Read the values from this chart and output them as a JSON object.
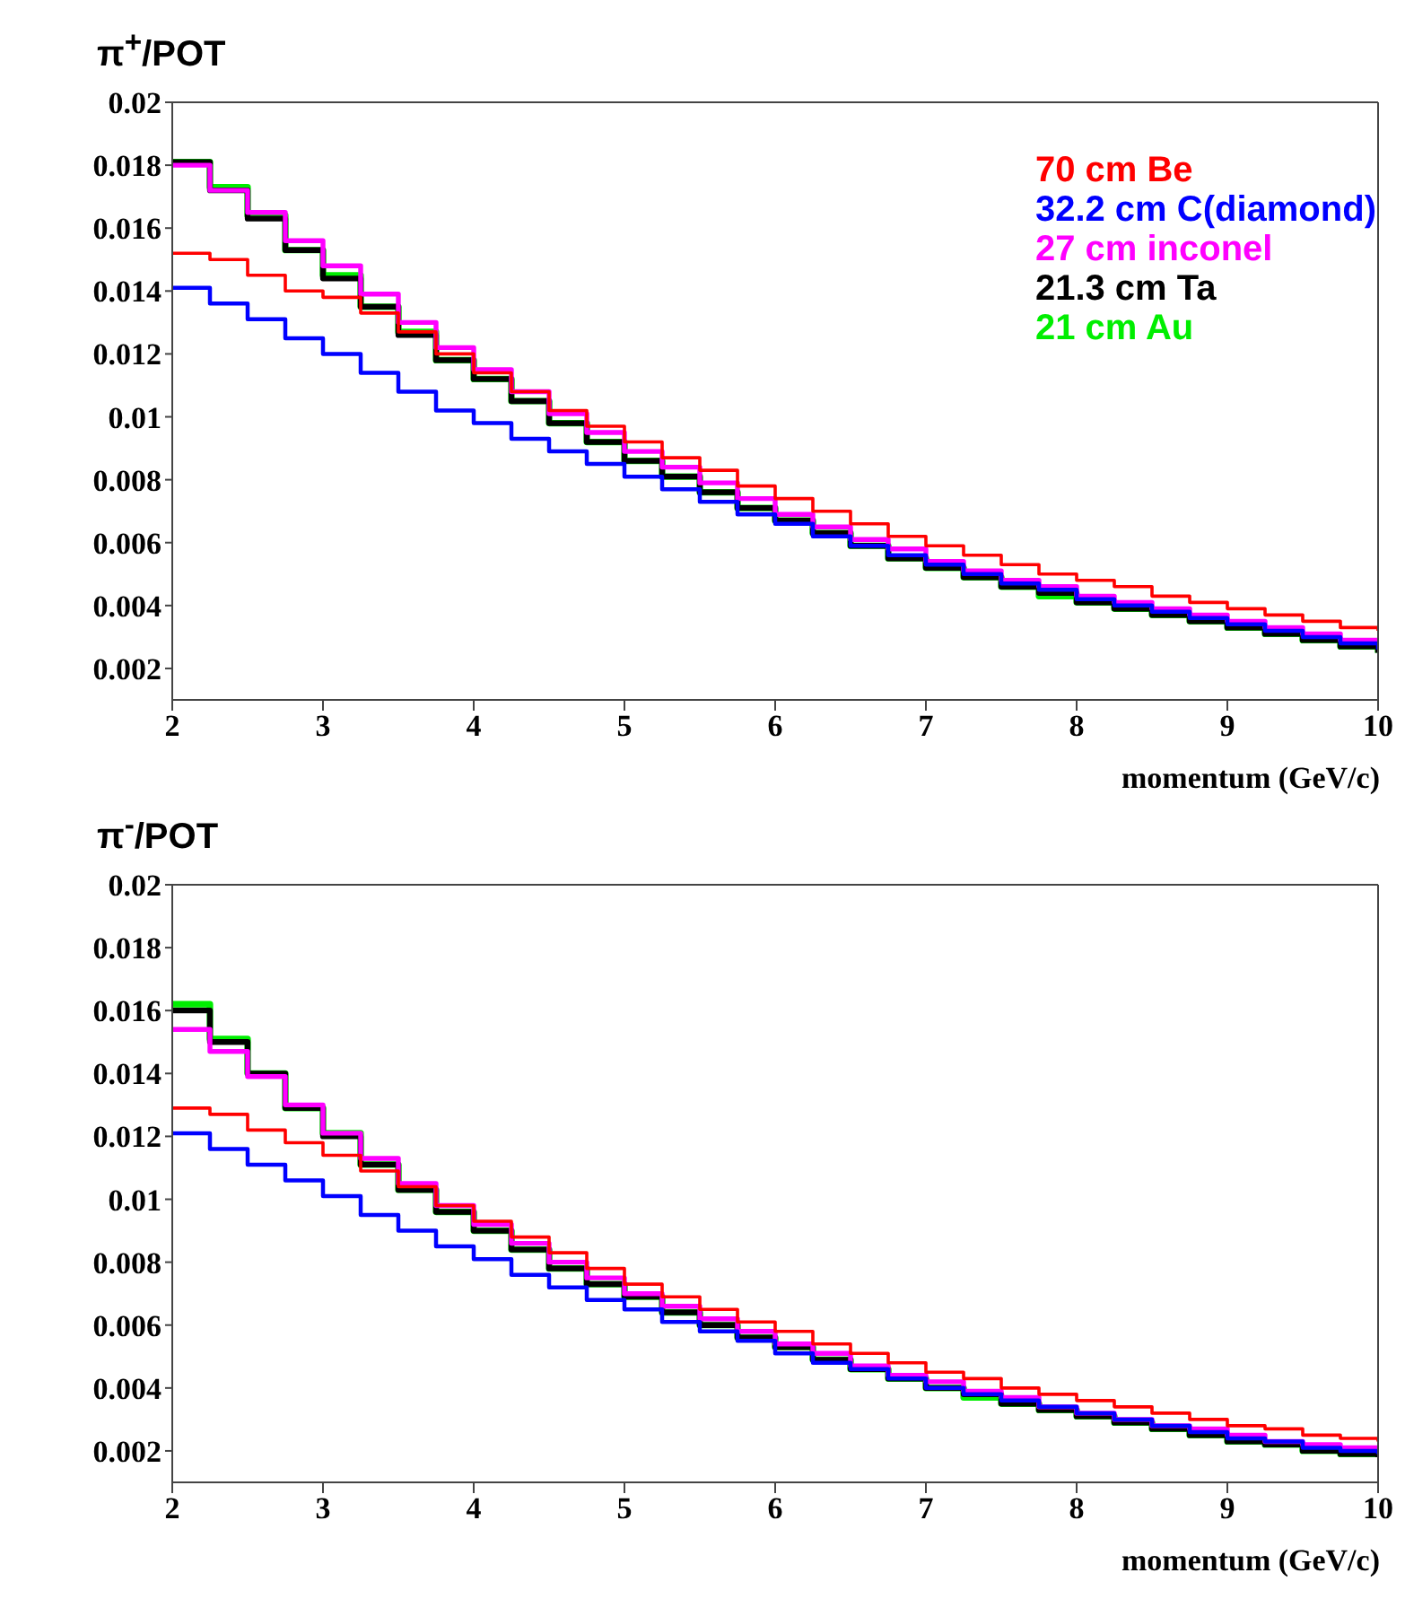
{
  "chart_data": [
    {
      "type": "step",
      "ylabel": "π$^{+}$/POT",
      "xlabel": "momentum (GeV/c)",
      "xlim": [
        2,
        10
      ],
      "xticks": [
        2,
        3,
        4,
        5,
        6,
        7,
        8,
        9,
        10
      ],
      "ylim": [
        0.001,
        0.02
      ],
      "yticks": [
        0.002,
        0.004,
        0.006,
        0.008,
        0.01,
        0.012,
        0.014,
        0.016,
        0.018,
        0.02
      ],
      "legend": "top right",
      "grid": false,
      "x": [
        2,
        2.25,
        2.5,
        2.75,
        3,
        3.25,
        3.5,
        3.75,
        4,
        4.25,
        4.5,
        4.75,
        5,
        5.25,
        5.5,
        5.75,
        6,
        6.25,
        6.5,
        6.75,
        7,
        7.25,
        7.5,
        7.75,
        8,
        8.25,
        8.5,
        8.75,
        9,
        9.25,
        9.5,
        9.75,
        10
      ],
      "series": [
        {
          "name": "70 cm Be",
          "color": "#ff0000",
          "values": [
            0.0152,
            0.015,
            0.0145,
            0.014,
            0.0138,
            0.0133,
            0.0127,
            0.012,
            0.0114,
            0.0108,
            0.0102,
            0.0097,
            0.0092,
            0.0087,
            0.0083,
            0.0078,
            0.0074,
            0.007,
            0.0066,
            0.0062,
            0.0059,
            0.0056,
            0.0053,
            0.005,
            0.0048,
            0.0046,
            0.0043,
            0.0041,
            0.0039,
            0.0037,
            0.0035,
            0.0033,
            0.0032
          ]
        },
        {
          "name": "32.2 cm C(diamond)",
          "color": "#0000ff",
          "values": [
            0.0141,
            0.0136,
            0.0131,
            0.0125,
            0.012,
            0.0114,
            0.0108,
            0.0102,
            0.0098,
            0.0093,
            0.0089,
            0.0085,
            0.0081,
            0.0077,
            0.0073,
            0.0069,
            0.0066,
            0.0062,
            0.0059,
            0.0056,
            0.0053,
            0.005,
            0.0047,
            0.0045,
            0.0042,
            0.004,
            0.0038,
            0.0036,
            0.0034,
            0.0032,
            0.003,
            0.0028,
            0.0026
          ]
        },
        {
          "name": "27 cm inconel",
          "color": "#ff00ff",
          "values": [
            0.018,
            0.0172,
            0.0165,
            0.0156,
            0.0148,
            0.0139,
            0.013,
            0.0122,
            0.0115,
            0.0108,
            0.0101,
            0.0095,
            0.0089,
            0.0084,
            0.0079,
            0.0074,
            0.0069,
            0.0065,
            0.0061,
            0.0058,
            0.0054,
            0.0051,
            0.0048,
            0.0046,
            0.0043,
            0.0041,
            0.0039,
            0.0037,
            0.0035,
            0.0033,
            0.0031,
            0.0029,
            0.0028
          ]
        },
        {
          "name": "21.3 cm Ta",
          "color": "#000000",
          "values": [
            0.0181,
            0.0172,
            0.0163,
            0.0153,
            0.0144,
            0.0135,
            0.0126,
            0.0118,
            0.0112,
            0.0105,
            0.0098,
            0.0092,
            0.0086,
            0.0081,
            0.0076,
            0.0071,
            0.0067,
            0.0063,
            0.0059,
            0.0055,
            0.0052,
            0.0049,
            0.0046,
            0.0044,
            0.0041,
            0.0039,
            0.0037,
            0.0035,
            0.0033,
            0.0031,
            0.0029,
            0.0027,
            0.0025
          ]
        },
        {
          "name": "21 cm Au",
          "color": "#00ee00",
          "values": [
            0.0181,
            0.0173,
            0.0164,
            0.0153,
            0.0145,
            0.0135,
            0.0127,
            0.0118,
            0.0112,
            0.0105,
            0.0098,
            0.0092,
            0.0086,
            0.0081,
            0.0076,
            0.0071,
            0.0067,
            0.0063,
            0.0059,
            0.0055,
            0.0052,
            0.0049,
            0.0046,
            0.0043,
            0.0041,
            0.0039,
            0.0037,
            0.0035,
            0.0033,
            0.0031,
            0.0029,
            0.0027,
            0.0025
          ]
        }
      ]
    },
    {
      "type": "step",
      "ylabel": "π$^{-}$/POT",
      "xlabel": "momentum (GeV/c)",
      "xlim": [
        2,
        10
      ],
      "xticks": [
        2,
        3,
        4,
        5,
        6,
        7,
        8,
        9,
        10
      ],
      "ylim": [
        0.001,
        0.02
      ],
      "yticks": [
        0.002,
        0.004,
        0.006,
        0.008,
        0.01,
        0.012,
        0.014,
        0.016,
        0.018,
        0.02
      ],
      "grid": false,
      "x": [
        2,
        2.25,
        2.5,
        2.75,
        3,
        3.25,
        3.5,
        3.75,
        4,
        4.25,
        4.5,
        4.75,
        5,
        5.25,
        5.5,
        5.75,
        6,
        6.25,
        6.5,
        6.75,
        7,
        7.25,
        7.5,
        7.75,
        8,
        8.25,
        8.5,
        8.75,
        9,
        9.25,
        9.5,
        9.75,
        10
      ],
      "series": [
        {
          "color": "#ff0000",
          "values": [
            0.0129,
            0.0127,
            0.0122,
            0.0118,
            0.0114,
            0.0109,
            0.0104,
            0.0098,
            0.0093,
            0.0088,
            0.0083,
            0.0078,
            0.0073,
            0.0069,
            0.0065,
            0.0061,
            0.0058,
            0.0054,
            0.0051,
            0.0048,
            0.0045,
            0.0043,
            0.004,
            0.0038,
            0.0036,
            0.0034,
            0.0032,
            0.003,
            0.0028,
            0.0027,
            0.0025,
            0.0024,
            0.0023
          ]
        },
        {
          "color": "#0000ff",
          "values": [
            0.0121,
            0.0116,
            0.0111,
            0.0106,
            0.0101,
            0.0095,
            0.009,
            0.0085,
            0.0081,
            0.0076,
            0.0072,
            0.0068,
            0.0065,
            0.0061,
            0.0058,
            0.0055,
            0.0051,
            0.0048,
            0.0046,
            0.0043,
            0.004,
            0.0038,
            0.0036,
            0.0034,
            0.0032,
            0.003,
            0.0028,
            0.0026,
            0.0024,
            0.0023,
            0.0021,
            0.002,
            0.0019
          ]
        },
        {
          "color": "#ff00ff",
          "values": [
            0.0154,
            0.0147,
            0.0139,
            0.013,
            0.0121,
            0.0113,
            0.0105,
            0.0098,
            0.0092,
            0.0086,
            0.008,
            0.0075,
            0.007,
            0.0066,
            0.0062,
            0.0058,
            0.0054,
            0.0051,
            0.0047,
            0.0044,
            0.0042,
            0.0039,
            0.0037,
            0.0034,
            0.0032,
            0.003,
            0.0028,
            0.0027,
            0.0025,
            0.0023,
            0.0022,
            0.0021,
            0.002
          ]
        },
        {
          "color": "#000000",
          "values": [
            0.016,
            0.015,
            0.014,
            0.0129,
            0.012,
            0.0111,
            0.0103,
            0.0096,
            0.009,
            0.0084,
            0.0078,
            0.0073,
            0.0069,
            0.0064,
            0.006,
            0.0056,
            0.0053,
            0.0049,
            0.0046,
            0.0043,
            0.004,
            0.0038,
            0.0035,
            0.0033,
            0.0031,
            0.0029,
            0.0027,
            0.0025,
            0.0023,
            0.0022,
            0.002,
            0.0019,
            0.0018
          ]
        },
        {
          "color": "#00ee00",
          "values": [
            0.0162,
            0.0151,
            0.014,
            0.0129,
            0.0121,
            0.0111,
            0.0103,
            0.0096,
            0.009,
            0.0084,
            0.0078,
            0.0073,
            0.0069,
            0.0064,
            0.006,
            0.0056,
            0.0053,
            0.0049,
            0.0046,
            0.0043,
            0.004,
            0.0037,
            0.0035,
            0.0033,
            0.0031,
            0.0029,
            0.0027,
            0.0025,
            0.0023,
            0.0022,
            0.002,
            0.0019,
            0.0018
          ]
        }
      ]
    }
  ]
}
